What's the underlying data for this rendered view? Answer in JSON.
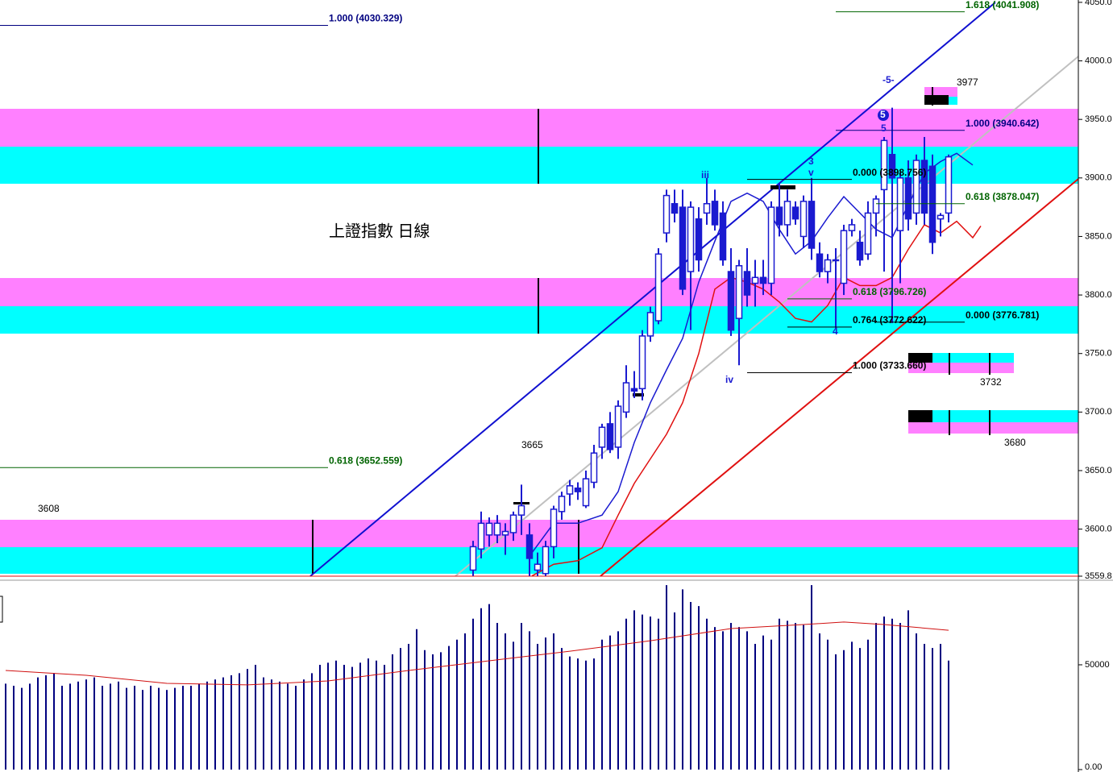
{
  "chart_data": [
    {
      "type": "candlestick",
      "title": "上證指數 日線",
      "ylim": [
        3559.8,
        4052
      ],
      "yticks": [
        {
          "value": 3559.8,
          "label": "3559.8"
        },
        {
          "value": 3600,
          "label": "3600.0"
        },
        {
          "value": 3650,
          "label": "3650.0"
        },
        {
          "value": 3700,
          "label": "3700.0"
        },
        {
          "value": 3750,
          "label": "3750.0"
        },
        {
          "value": 3800,
          "label": "3800.0"
        },
        {
          "value": 3850,
          "label": "3850.0"
        },
        {
          "value": 3900,
          "label": "3900.0"
        },
        {
          "value": 3950,
          "label": "3950.0"
        },
        {
          "value": 4000,
          "label": "4000.0"
        },
        {
          "value": 4050,
          "label": "4050.0"
        }
      ],
      "candles": {
        "open": [
          3565,
          3583,
          3595,
          3595,
          3595,
          3597,
          3612,
          3595,
          3565,
          3562,
          3585,
          3615,
          3630,
          3635,
          3620,
          3640,
          3670,
          3690,
          3670,
          3700,
          3720,
          3720,
          3765,
          3778,
          3853,
          3878,
          3875,
          3820,
          3865,
          3870,
          3880,
          3870,
          3820,
          3780,
          3820,
          3810,
          3815,
          3810,
          3875,
          3860,
          3875,
          3850,
          3880,
          3835,
          3820,
          3830,
          3810,
          3855,
          3845,
          3835,
          3870,
          3890,
          3920,
          3855,
          3900,
          3870,
          3915,
          3910,
          3865,
          3870
        ],
        "high": [
          3590,
          3615,
          3610,
          3612,
          3605,
          3615,
          3638,
          3605,
          3580,
          3590,
          3620,
          3632,
          3642,
          3640,
          3650,
          3672,
          3690,
          3700,
          3710,
          3740,
          3735,
          3770,
          3790,
          3840,
          3890,
          3890,
          3890,
          3880,
          3875,
          3900,
          3890,
          3880,
          3840,
          3830,
          3840,
          3830,
          3830,
          3880,
          3895,
          3890,
          3880,
          3885,
          3900,
          3845,
          3835,
          3840,
          3860,
          3865,
          3855,
          3880,
          3885,
          3935,
          3960,
          3905,
          3915,
          3920,
          3935,
          3920,
          3870,
          3920
        ],
        "low": [
          3560,
          3575,
          3585,
          3588,
          3578,
          3590,
          3595,
          3560,
          3560,
          3560,
          3575,
          3608,
          3620,
          3625,
          3618,
          3635,
          3660,
          3665,
          3660,
          3695,
          3712,
          3710,
          3760,
          3775,
          3845,
          3862,
          3800,
          3770,
          3820,
          3860,
          3855,
          3825,
          3765,
          3740,
          3790,
          3790,
          3800,
          3800,
          3850,
          3850,
          3860,
          3840,
          3830,
          3815,
          3810,
          3772,
          3800,
          3850,
          3825,
          3830,
          3850,
          3820,
          3776,
          3810,
          3855,
          3860,
          3860,
          3835,
          3850,
          3862
        ],
        "close": [
          3585,
          3605,
          3605,
          3605,
          3598,
          3612,
          3620,
          3575,
          3570,
          3585,
          3617,
          3628,
          3637,
          3632,
          3643,
          3665,
          3687,
          3668,
          3705,
          3725,
          3718,
          3765,
          3785,
          3835,
          3885,
          3870,
          3805,
          3875,
          3830,
          3878,
          3860,
          3830,
          3770,
          3825,
          3800,
          3815,
          3810,
          3875,
          3860,
          3880,
          3865,
          3880,
          3840,
          3820,
          3830,
          3830,
          3855,
          3860,
          3830,
          3870,
          3882,
          3932,
          3900,
          3900,
          3865,
          3915,
          3870,
          3845,
          3868,
          3918
        ],
        "up_color": "#ffffff",
        "down_color": "#1a1ad0",
        "edge_color": "#1a1ad0"
      },
      "lines": [
        {
          "color": "#1a1ad0",
          "x": [
            65,
            68,
            71,
            74,
            76,
            78,
            80,
            82,
            84,
            86,
            88,
            90,
            92,
            94,
            96,
            98,
            100,
            102,
            104,
            106,
            108,
            110,
            112,
            114,
            116,
            118,
            120
          ],
          "values": [
            3577,
            3605,
            3605,
            3612,
            3632,
            3674,
            3708,
            3736,
            3763,
            3811,
            3846,
            3880,
            3887,
            3880,
            3856,
            3835,
            3846,
            3866,
            3884,
            3870,
            3856,
            3849,
            3877,
            3904,
            3914,
            3921,
            3911
          ]
        },
        {
          "color": "#e01010",
          "x": [
            65.3,
            68,
            71,
            74,
            76,
            78,
            80,
            82,
            84,
            86,
            88,
            90,
            92,
            94,
            96,
            98,
            100,
            102,
            104,
            106,
            108,
            110,
            112,
            114,
            116,
            118,
            120,
            121
          ],
          "values": [
            3560,
            3570,
            3573,
            3584,
            3612,
            3639,
            3660,
            3681,
            3708,
            3750,
            3805,
            3815,
            3811,
            3805,
            3794,
            3780,
            3777,
            3791,
            3815,
            3808,
            3808,
            3815,
            3839,
            3860,
            3853,
            3863,
            3849,
            3859
          ]
        }
      ],
      "fib_levels": [
        {
          "label": "1.000 (4030.329)",
          "value": 4030.329,
          "color": "#000080"
        },
        {
          "label": "0.618 (3652.559)",
          "value": 3652.559,
          "color": "#006400"
        },
        {
          "label": "1.618 (4041.908)",
          "value": 4041.908,
          "color": "#006400"
        },
        {
          "label": "1.000 (3940.642)",
          "value": 3940.642,
          "color": "#000080"
        },
        {
          "label": "0.000 (3898.756)",
          "value": 3898.756,
          "color": "#000000"
        },
        {
          "label": "0.618 (3878.047)",
          "value": 3878.047,
          "color": "#006400"
        },
        {
          "label": "0.618 (3796.726)",
          "value": 3796.726,
          "color": "#006400"
        },
        {
          "label": "0.000 (3776.781)",
          "value": 3776.781,
          "color": "#000000"
        },
        {
          "label": "0.764 (3772.622)",
          "value": 3772.622,
          "color": "#000000"
        },
        {
          "label": "1.000 (3733.660)",
          "value": 3733.66,
          "color": "#000000"
        }
      ],
      "price_labels": [
        3608,
        3665,
        3977,
        3732,
        3680
      ],
      "wave_labels": [
        "iii",
        "iv",
        "3",
        "v",
        "4",
        "5",
        "-5-",
        "5"
      ]
    },
    {
      "type": "bar",
      "ylim": [
        0,
        89600
      ],
      "yticks": [
        {
          "value": 0,
          "label": "0.00"
        },
        50000
      ],
      "color": "#000080",
      "values": [
        41000,
        40000,
        39000,
        41000,
        44000,
        45000,
        46000,
        40000,
        41000,
        42000,
        43000,
        44000,
        40000,
        41000,
        42000,
        39000,
        40000,
        38000,
        40000,
        39000,
        38000,
        39000,
        40000,
        40000,
        41000,
        42000,
        43000,
        44000,
        45000,
        46000,
        48000,
        50000,
        44000,
        43000,
        42000,
        41000,
        40000,
        43000,
        46000,
        50000,
        51000,
        52000,
        50000,
        49000,
        51000,
        53000,
        52000,
        50000,
        55000,
        58000,
        60000,
        67000,
        57000,
        55000,
        56000,
        59000,
        62000,
        65000,
        72000,
        77000,
        79000,
        70000,
        65000,
        61000,
        70000,
        66000,
        60000,
        63000,
        65000,
        58000,
        54000,
        53000,
        52000,
        53000,
        62000,
        64000,
        66000,
        72000,
        76000,
        74000,
        73000,
        72000,
        88000,
        75000,
        86000,
        80000,
        78000,
        72000,
        68000,
        66000,
        70000,
        68000,
        66000,
        60000,
        64000,
        62000,
        72000,
        71000,
        70000,
        69000,
        88000,
        65000,
        62000,
        55000,
        57000,
        61000,
        58000,
        62000,
        70000,
        73000,
        72000,
        70000,
        76000,
        65000,
        60000,
        58000,
        60000,
        52000
      ],
      "ma": {
        "color": "#d01010",
        "x": [
          0,
          10,
          20,
          30,
          40,
          50,
          60,
          70,
          80,
          90,
          99,
          104,
          109,
          117
        ],
        "values": [
          47300,
          45000,
          41150,
          40400,
          42300,
          47300,
          51900,
          56500,
          61500,
          67300,
          69200,
          70400,
          69200,
          66500
        ]
      }
    }
  ]
}
